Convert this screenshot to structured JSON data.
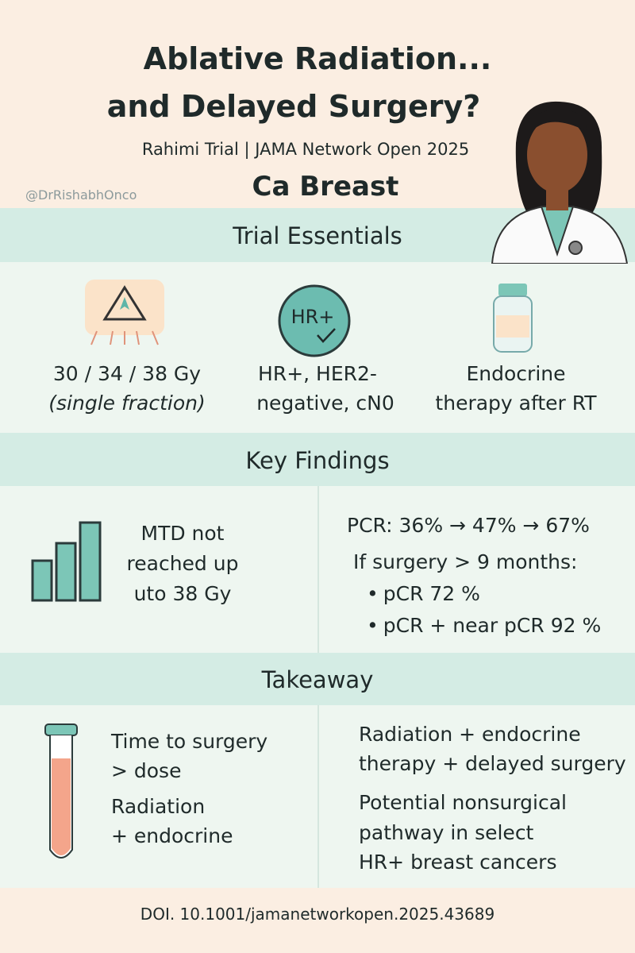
{
  "header": {
    "title": [
      "Ablative Radiation...",
      "and Delayed Surgery?"
    ],
    "subtitle": "Rahimi Trial | JAMA Network Open 2025",
    "handle": "@DrRishabhOnco",
    "topic": "Ca Breast"
  },
  "essentials": {
    "heading": "Trial Essentials",
    "icon_label": "HR+",
    "items": [
      [
        "30 / 34 / 38 Gy",
        "(single fraction)"
      ],
      [
        "HR+, HER2-",
        "negative, cN0"
      ],
      [
        "Endocrine",
        "therapy after RT"
      ]
    ]
  },
  "findings": {
    "heading": "Key Findings",
    "left": [
      "MTD not",
      "reached up",
      "uto 38 Gy"
    ],
    "pcr": "PCR: 36% → 47% → 67%",
    "condition": "If surgery > 9 months:",
    "bullets": [
      "pCR 72 %",
      "pCR + near pCR 92 %"
    ]
  },
  "takeaway": {
    "heading": "Takeaway",
    "left": [
      "Time to surgery",
      "> dose",
      "Radiation",
      "+ endocrine"
    ],
    "right": [
      "Radiation + endocrine",
      "therapy + delayed surgery",
      "Potential nonsurgical",
      "pathway in select",
      "HR+ breast cancers"
    ]
  },
  "footer": {
    "doi": "DOI. 10.1001/jamanetworkopen.2025.43689"
  }
}
